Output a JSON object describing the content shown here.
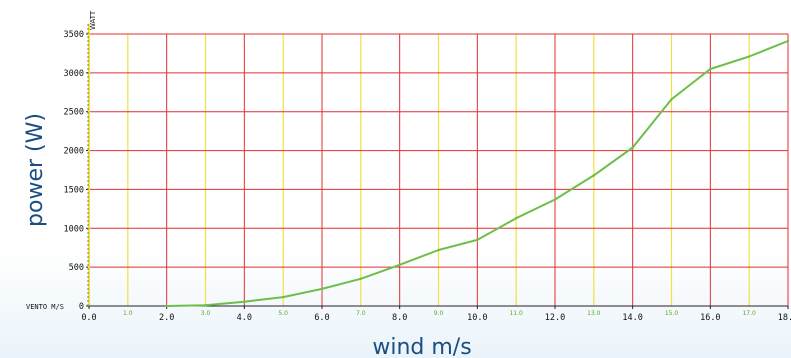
{
  "chart_data": {
    "type": "line",
    "xlabel": "wind m/s",
    "ylabel": "power (W)",
    "unit_label": "WATT",
    "axis_corner_label": "VENTO M/S",
    "x_major_ticks": [
      "0.0",
      "2.0",
      "4.0",
      "6.0",
      "8.0",
      "10.0",
      "12.0",
      "14.0",
      "16.0",
      "18.0"
    ],
    "x_minor_ticks": [
      "1.0",
      "3.0",
      "5.0",
      "7.0",
      "9.0",
      "11.0",
      "13.0",
      "15.0",
      "17.0"
    ],
    "y_ticks": [
      "0",
      "500",
      "1000",
      "1500",
      "2000",
      "2500",
      "3000",
      "3500"
    ],
    "xlim": [
      0,
      18
    ],
    "ylim": [
      0,
      3500
    ],
    "grid": true,
    "colors": {
      "major_grid": "#e03030",
      "minor_grid": "#f0e040",
      "line": "#6cc04a",
      "axis_label": "#1a4e82",
      "minor_tick_label": "#5aa828"
    },
    "series": [
      {
        "x": [
          2,
          3,
          4,
          5,
          6,
          7,
          8,
          9,
          10,
          11,
          12,
          13,
          14,
          15,
          16,
          17,
          18
        ],
        "values": [
          0,
          10,
          55,
          115,
          220,
          350,
          530,
          720,
          850,
          1130,
          1370,
          1680,
          2040,
          2660,
          3050,
          3210,
          3410
        ]
      }
    ]
  }
}
